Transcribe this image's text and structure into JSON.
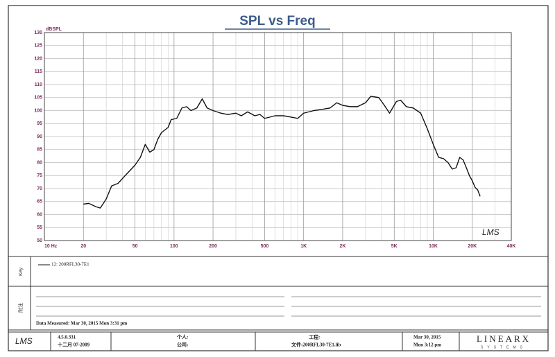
{
  "chart_data": {
    "type": "line",
    "title": "SPL vs Freq",
    "y_label": "dBSPL",
    "watermark": "LMS",
    "x": [
      20,
      22,
      25,
      27,
      30,
      33,
      37,
      42,
      50,
      55,
      60,
      65,
      70,
      75,
      80,
      90,
      95,
      105,
      115,
      125,
      135,
      150,
      165,
      180,
      200,
      230,
      260,
      300,
      330,
      370,
      420,
      460,
      500,
      550,
      600,
      700,
      800,
      900,
      1000,
      1200,
      1400,
      1600,
      1800,
      2000,
      2300,
      2600,
      3000,
      3300,
      3800,
      4200,
      4600,
      5200,
      5600,
      6200,
      7000,
      8000,
      9000,
      10000,
      11000,
      12000,
      13000,
      14000,
      15000,
      16000,
      17000,
      18000,
      19000,
      20000,
      21000,
      22000,
      23000
    ],
    "series": [
      {
        "name": "12: 200RFL30-7E1",
        "color": "#111111",
        "values": [
          64,
          64.3,
          63,
          62.5,
          66,
          71,
          72,
          75,
          79,
          82,
          87,
          84,
          85,
          89,
          91.5,
          93.5,
          96.5,
          97,
          101,
          101.5,
          100,
          101,
          104.5,
          101,
          100,
          99,
          98.5,
          99,
          98,
          99.5,
          98,
          98.5,
          97,
          97.5,
          98,
          98,
          97.5,
          97,
          99,
          100,
          100.5,
          101,
          103,
          102,
          101.5,
          101.5,
          103,
          105.5,
          105,
          102,
          99,
          103.5,
          104,
          101.5,
          101,
          99,
          93,
          87,
          82,
          81.5,
          80,
          77.5,
          78,
          82,
          81,
          78,
          75,
          73,
          70.5,
          69.5,
          67
        ]
      }
    ],
    "xlim": [
      10,
      40000
    ],
    "log_x": true,
    "xticks": [
      {
        "value": 10,
        "label": "10 Hz"
      },
      20,
      50,
      100,
      200,
      500,
      {
        "value": 1000,
        "label": "1K"
      },
      {
        "value": 2000,
        "label": "2K"
      },
      {
        "value": 5000,
        "label": "5K"
      },
      {
        "value": 10000,
        "label": "10K"
      },
      {
        "value": 20000,
        "label": "20K"
      },
      {
        "value": 40000,
        "label": "40K"
      }
    ],
    "xminorticks": [
      30,
      40,
      60,
      70,
      80,
      90,
      300,
      400,
      600,
      700,
      800,
      900,
      3000,
      4000,
      6000,
      7000,
      8000,
      9000,
      30000
    ],
    "ylim": [
      50,
      130
    ],
    "yticks": [
      50,
      55,
      60,
      65,
      70,
      75,
      80,
      85,
      90,
      95,
      100,
      105,
      110,
      115,
      120,
      125,
      130
    ],
    "grid": true
  },
  "key": {
    "label": "Key"
  },
  "notes": {
    "label": "附注",
    "measured": "Data Measured: Mar 30, 2015  Mon  3:31 pm"
  },
  "footer": {
    "logo": "LMS",
    "version": "4.5.0.331",
    "build_date": "十二月 07-2009",
    "personal": "个人:",
    "company": "公司:",
    "project": "工程:",
    "file": "文件:200RFL30-7E1.lib",
    "date": "Mar 30, 2015",
    "time": "Mon  3:12 pm",
    "brand": "LINEARX",
    "brand_sub": "SYSTEMS"
  }
}
